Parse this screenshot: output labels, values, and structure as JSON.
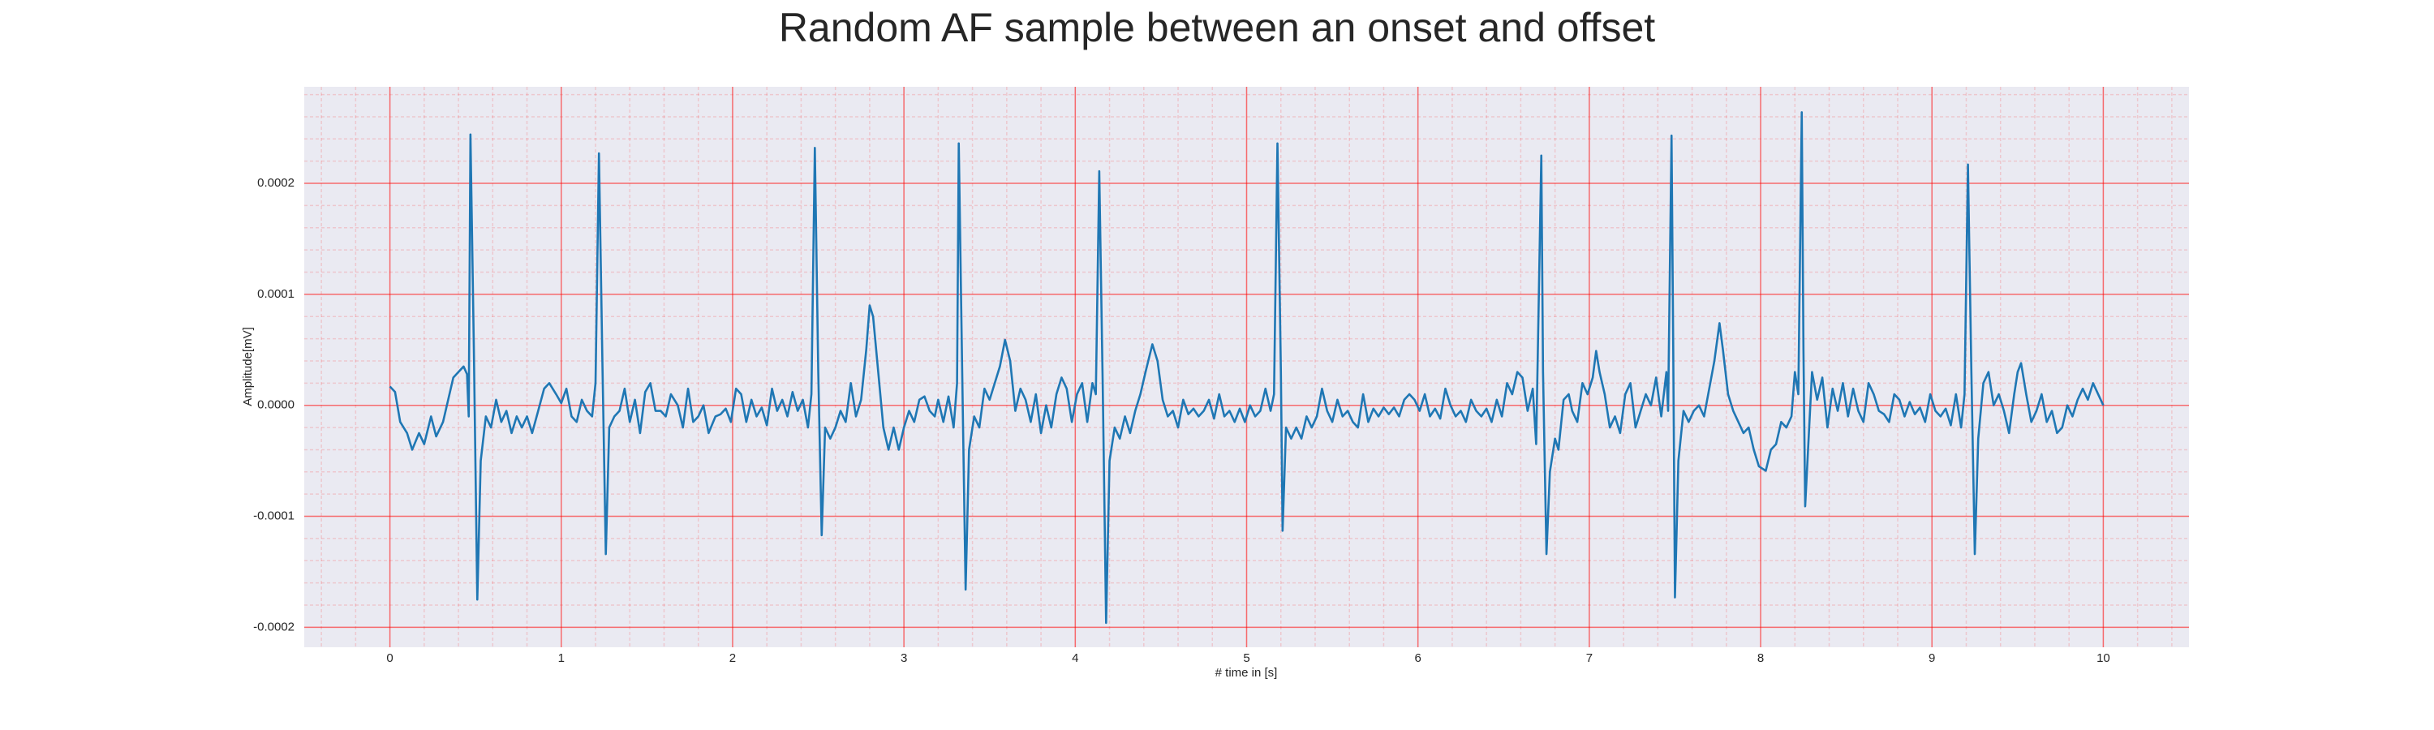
{
  "chart_data": {
    "type": "line",
    "title": "Random AF sample between an onset and offset",
    "xlabel": "# time in [s]",
    "ylabel": "Amplitude[mV]",
    "xlim": [
      -0.5,
      10.5
    ],
    "ylim": [
      -0.000218,
      0.000287
    ],
    "xticks": [
      0,
      1,
      2,
      3,
      4,
      5,
      6,
      7,
      8,
      9,
      10
    ],
    "yticks": [
      -0.0002,
      -0.0001,
      {
        "value": 0,
        "label": "0.0000"
      },
      0.0001,
      0.0002
    ],
    "xminorticks": [
      -0.4,
      -0.2,
      0.2,
      0.4,
      0.6,
      0.8,
      1.2,
      1.4,
      1.6,
      1.8,
      2.2,
      2.4,
      2.6,
      2.8,
      3.2,
      3.4,
      3.6,
      3.8,
      4.2,
      4.4,
      4.6,
      4.8,
      5.2,
      5.4,
      5.6,
      5.8,
      6.2,
      6.4,
      6.6,
      6.8,
      7.2,
      7.4,
      7.6,
      7.8,
      8.2,
      8.4,
      8.6,
      8.8,
      9.2,
      9.4,
      9.6,
      9.8,
      10.2,
      10.4
    ],
    "yminorticks": [
      -0.00018,
      -0.00016,
      -0.00014,
      -0.00012,
      -8e-05,
      -6e-05,
      -4e-05,
      -2e-05,
      2e-05,
      4e-05,
      6e-05,
      8e-05,
      0.00012,
      0.00014,
      0.00016,
      0.00018,
      0.00022,
      0.00024,
      0.00026,
      0.00028
    ],
    "grid": true,
    "grid_color": "#ff0000",
    "background": "#eaeaf2",
    "x": [
      0,
      0.03,
      0.06,
      0.1,
      0.13,
      0.17,
      0.2,
      0.24,
      0.27,
      0.31,
      0.34,
      0.37,
      0.4,
      0.43,
      0.45,
      0.46,
      0.47,
      0.49,
      0.51,
      0.53,
      0.56,
      0.59,
      0.62,
      0.65,
      0.68,
      0.71,
      0.74,
      0.77,
      0.8,
      0.83,
      0.86,
      0.9,
      0.93,
      0.97,
      1.0,
      1.03,
      1.06,
      1.09,
      1.12,
      1.15,
      1.18,
      1.2,
      1.22,
      1.24,
      1.26,
      1.28,
      1.31,
      1.34,
      1.37,
      1.4,
      1.43,
      1.46,
      1.49,
      1.52,
      1.55,
      1.58,
      1.61,
      1.64,
      1.68,
      1.71,
      1.74,
      1.77,
      1.8,
      1.83,
      1.86,
      1.9,
      1.93,
      1.96,
      1.99,
      2.02,
      2.05,
      2.08,
      2.11,
      2.14,
      2.17,
      2.2,
      2.23,
      2.26,
      2.29,
      2.32,
      2.35,
      2.38,
      2.41,
      2.44,
      2.46,
      2.48,
      2.5,
      2.52,
      2.54,
      2.57,
      2.6,
      2.63,
      2.66,
      2.69,
      2.72,
      2.75,
      2.78,
      2.8,
      2.82,
      2.85,
      2.88,
      2.91,
      2.94,
      2.97,
      3.0,
      3.03,
      3.06,
      3.09,
      3.12,
      3.15,
      3.18,
      3.2,
      3.23,
      3.26,
      3.29,
      3.31,
      3.32,
      3.34,
      3.36,
      3.38,
      3.41,
      3.44,
      3.47,
      3.5,
      3.53,
      3.56,
      3.59,
      3.62,
      3.65,
      3.68,
      3.71,
      3.74,
      3.77,
      3.8,
      3.83,
      3.86,
      3.89,
      3.92,
      3.95,
      3.98,
      4.01,
      4.04,
      4.07,
      4.1,
      4.12,
      4.14,
      4.16,
      4.18,
      4.2,
      4.23,
      4.26,
      4.29,
      4.32,
      4.35,
      4.38,
      4.41,
      4.45,
      4.48,
      4.51,
      4.54,
      4.57,
      4.6,
      4.63,
      4.66,
      4.69,
      4.72,
      4.75,
      4.78,
      4.81,
      4.84,
      4.87,
      4.9,
      4.93,
      4.96,
      4.99,
      5.02,
      5.05,
      5.08,
      5.11,
      5.14,
      5.16,
      5.18,
      5.2,
      5.21,
      5.23,
      5.26,
      5.29,
      5.32,
      5.35,
      5.38,
      5.41,
      5.44,
      5.47,
      5.5,
      5.53,
      5.56,
      5.59,
      5.62,
      5.65,
      5.68,
      5.71,
      5.74,
      5.77,
      5.8,
      5.83,
      5.86,
      5.89,
      5.92,
      5.95,
      5.98,
      6.01,
      6.04,
      6.07,
      6.1,
      6.13,
      6.16,
      6.19,
      6.22,
      6.25,
      6.28,
      6.31,
      6.34,
      6.37,
      6.4,
      6.43,
      6.46,
      6.49,
      6.52,
      6.55,
      6.58,
      6.61,
      6.64,
      6.67,
      6.69,
      6.72,
      6.73,
      6.75,
      6.77,
      6.8,
      6.82,
      6.85,
      6.88,
      6.9,
      6.93,
      6.96,
      6.99,
      7.02,
      7.04,
      7.06,
      7.09,
      7.12,
      7.15,
      7.18,
      7.21,
      7.24,
      7.27,
      7.3,
      7.33,
      7.36,
      7.39,
      7.42,
      7.45,
      7.46,
      7.48,
      7.49,
      7.5,
      7.52,
      7.55,
      7.58,
      7.61,
      7.64,
      7.67,
      7.7,
      7.73,
      7.76,
      7.78,
      7.81,
      7.84,
      7.87,
      7.9,
      7.93,
      7.96,
      7.99,
      8.03,
      8.06,
      8.09,
      8.12,
      8.15,
      8.18,
      8.2,
      8.22,
      8.24,
      8.25,
      8.26,
      8.28,
      8.3,
      8.33,
      8.36,
      8.39,
      8.42,
      8.45,
      8.48,
      8.51,
      8.54,
      8.57,
      8.6,
      8.63,
      8.66,
      8.69,
      8.72,
      8.75,
      8.78,
      8.81,
      8.84,
      8.87,
      8.9,
      8.93,
      8.96,
      8.99,
      9.02,
      9.05,
      9.08,
      9.11,
      9.14,
      9.17,
      9.19,
      9.21,
      9.23,
      9.25,
      9.27,
      9.3,
      9.33,
      9.36,
      9.39,
      9.42,
      9.45,
      9.48,
      9.5,
      9.52,
      9.55,
      9.58,
      9.61,
      9.64,
      9.67,
      9.7,
      9.73,
      9.76,
      9.79,
      9.82,
      9.85,
      9.88,
      9.91,
      9.94,
      9.97,
      10.0
    ],
    "series": [
      {
        "color": "#1f77b4",
        "values": [
          1.7e-05,
          1.2e-05,
          -1.5e-05,
          -2.5e-05,
          -4e-05,
          -2.5e-05,
          -3.5e-05,
          -1e-05,
          -2.8e-05,
          -1.5e-05,
          5e-06,
          2.5e-05,
          3e-05,
          3.5e-05,
          2.8e-05,
          -1e-05,
          0.000244,
          5e-05,
          -0.000175,
          -5e-05,
          -1e-05,
          -2e-05,
          5e-06,
          -1.5e-05,
          -5e-06,
          -2.5e-05,
          -1e-05,
          -2e-05,
          -1e-05,
          -2.5e-05,
          -8e-06,
          1.5e-05,
          2e-05,
          1e-05,
          2e-06,
          1.5e-05,
          -1e-05,
          -1.5e-05,
          5e-06,
          -5e-06,
          -1e-05,
          2e-05,
          0.000227,
          4e-05,
          -0.000134,
          -2e-05,
          -1e-05,
          -5e-06,
          1.5e-05,
          -1.5e-05,
          5e-06,
          -2.5e-05,
          1.2e-05,
          2e-05,
          -5e-06,
          -5e-06,
          -1e-05,
          1e-05,
          0,
          -2e-05,
          1.5e-05,
          -1.5e-05,
          -1e-05,
          0,
          -2.5e-05,
          -1e-05,
          -8e-06,
          -3e-06,
          -1.5e-05,
          1.5e-05,
          1e-05,
          -1.5e-05,
          5e-06,
          -1e-05,
          -2e-06,
          -1.8e-05,
          1.5e-05,
          -5e-06,
          5e-06,
          -1e-05,
          1.2e-05,
          -5e-06,
          5e-06,
          -2e-05,
          1e-05,
          0.000232,
          3e-05,
          -0.000117,
          -2e-05,
          -3e-05,
          -2e-05,
          -5e-06,
          -1.5e-05,
          2e-05,
          -1e-05,
          5e-06,
          5e-05,
          9e-05,
          8e-05,
          3e-05,
          -2e-05,
          -4e-05,
          -2e-05,
          -4e-05,
          -2e-05,
          -5e-06,
          -1.5e-05,
          5e-06,
          8e-06,
          -5e-06,
          -1e-05,
          5e-06,
          -1.5e-05,
          8e-06,
          -2e-05,
          2e-05,
          0.000236,
          3e-05,
          -0.000166,
          -4e-05,
          -1e-05,
          -2e-05,
          1.5e-05,
          5e-06,
          2e-05,
          3.5e-05,
          5.9e-05,
          4e-05,
          -5e-06,
          1.5e-05,
          5e-06,
          -1.5e-05,
          1e-05,
          -2.5e-05,
          0,
          -2e-05,
          1e-05,
          2.5e-05,
          1.5e-05,
          -1.5e-05,
          1e-05,
          2e-05,
          -1.5e-05,
          2e-05,
          1e-05,
          0.000211,
          2e-05,
          -0.000196,
          -5e-05,
          -2e-05,
          -3e-05,
          -1e-05,
          -2.5e-05,
          -5e-06,
          1e-05,
          3e-05,
          5.5e-05,
          4e-05,
          5e-06,
          -1e-05,
          -5e-06,
          -2e-05,
          5e-06,
          -8e-06,
          -3e-06,
          -1e-05,
          -5e-06,
          5e-06,
          -1.2e-05,
          1e-05,
          -1e-05,
          -5e-06,
          -1.5e-05,
          -3e-06,
          -1.5e-05,
          0,
          -1e-05,
          -5e-06,
          1.5e-05,
          -5e-06,
          1e-05,
          0.000236,
          3e-05,
          -0.000113,
          -2e-05,
          -3e-05,
          -2e-05,
          -3e-05,
          -1e-05,
          -2e-05,
          -1e-05,
          1.5e-05,
          -5e-06,
          -1.5e-05,
          5e-06,
          -1e-05,
          -5e-06,
          -1.5e-05,
          -2e-05,
          1e-05,
          -1.5e-05,
          -3e-06,
          -1e-05,
          -2e-06,
          -8e-06,
          -2e-06,
          -1e-05,
          5e-06,
          1e-05,
          5e-06,
          -5e-06,
          1e-05,
          -1e-05,
          -3e-06,
          -1.2e-05,
          1.5e-05,
          0,
          -1e-05,
          -5e-06,
          -1.5e-05,
          5e-06,
          -5e-06,
          -1e-05,
          -3e-06,
          -1.5e-05,
          5e-06,
          -1e-05,
          2e-05,
          1e-05,
          3e-05,
          2.5e-05,
          -5e-06,
          1.5e-05,
          -3.5e-05,
          0.000225,
          3e-05,
          -0.000134,
          -6e-05,
          -3e-05,
          -4e-05,
          5e-06,
          1e-05,
          -5e-06,
          -1.5e-05,
          2e-05,
          1e-05,
          2.5e-05,
          4.9e-05,
          3e-05,
          1e-05,
          -2e-05,
          -1e-05,
          -2.5e-05,
          1e-05,
          2e-05,
          -2e-05,
          -5e-06,
          1e-05,
          0,
          2.5e-05,
          -1e-05,
          3e-05,
          -5e-06,
          0.000243,
          5e-05,
          -0.000173,
          -5e-05,
          -5e-06,
          -1.5e-05,
          -5e-06,
          0,
          -1e-05,
          1.5e-05,
          4e-05,
          7.4e-05,
          5e-05,
          1e-05,
          -5e-06,
          -1.5e-05,
          -2.5e-05,
          -2e-05,
          -4e-05,
          -5.5e-05,
          -5.9e-05,
          -4e-05,
          -3.5e-05,
          -1.5e-05,
          -2e-05,
          -1e-05,
          3e-05,
          1e-05,
          0.000264,
          5e-05,
          -9.1e-05,
          -3e-05,
          3e-05,
          5e-06,
          2.5e-05,
          -2e-05,
          1.5e-05,
          -5e-06,
          2e-05,
          -1e-05,
          1.5e-05,
          -5e-06,
          -1.5e-05,
          2e-05,
          1e-05,
          -5e-06,
          -8e-06,
          -1.5e-05,
          1e-05,
          5e-06,
          -1e-05,
          3e-06,
          -8e-06,
          -2e-06,
          -1.5e-05,
          1e-05,
          -5e-06,
          -1e-05,
          -3e-06,
          -1.8e-05,
          1e-05,
          -2e-05,
          1e-05,
          0.000217,
          3e-05,
          -0.000134,
          -3e-05,
          2e-05,
          3e-05,
          0,
          1e-05,
          -5e-06,
          -2.5e-05,
          1e-05,
          3e-05,
          3.8e-05,
          1e-05,
          -1.5e-05,
          -5e-06,
          1e-05,
          -1.5e-05,
          -5e-06,
          -2.5e-05,
          -2e-05,
          0,
          -1e-05,
          5e-06,
          1.5e-05,
          5e-06,
          2e-05,
          1e-05,
          0
        ]
      }
    ]
  }
}
